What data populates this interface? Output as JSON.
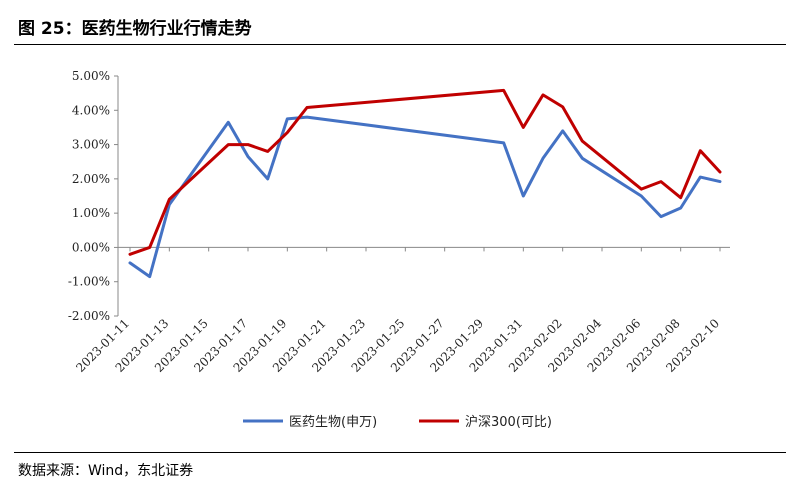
{
  "figure": {
    "title": "图 25：医药生物行业行情走势",
    "source": "数据来源：Wind，东北证券"
  },
  "chart_data": {
    "type": "line",
    "title": "",
    "xlabel": "",
    "ylabel": "",
    "ylim": [
      -2,
      5
    ],
    "yticks": [
      -2,
      -1,
      0,
      1,
      2,
      3,
      4,
      5
    ],
    "ytick_labels": [
      "-2.00%",
      "-1.00%",
      "0.00%",
      "1.00%",
      "2.00%",
      "3.00%",
      "4.00%",
      "5.00%"
    ],
    "x_range": [
      "2023-01-11",
      "2023-02-10"
    ],
    "xtick_labels": [
      "2023-01-11",
      "2023-01-13",
      "2023-01-15",
      "2023-01-17",
      "2023-01-19",
      "2023-01-21",
      "2023-01-23",
      "2023-01-25",
      "2023-01-27",
      "2023-01-29",
      "2023-01-31",
      "2023-02-02",
      "2023-02-04",
      "2023-02-06",
      "2023-02-08",
      "2023-02-10"
    ],
    "grid": false,
    "legend_position": "bottom",
    "series": [
      {
        "name": "医药生物(申万)",
        "color": "#4472C4",
        "points": [
          [
            "2023-01-11",
            -0.45
          ],
          [
            "2023-01-12",
            -0.85
          ],
          [
            "2023-01-13",
            1.25
          ],
          [
            "2023-01-16",
            3.65
          ],
          [
            "2023-01-17",
            2.65
          ],
          [
            "2023-01-18",
            2.0
          ],
          [
            "2023-01-19",
            3.75
          ],
          [
            "2023-01-20",
            3.8
          ],
          [
            "2023-01-30",
            3.05
          ],
          [
            "2023-01-31",
            1.5
          ],
          [
            "2023-02-01",
            2.6
          ],
          [
            "2023-02-02",
            3.4
          ],
          [
            "2023-02-03",
            2.6
          ],
          [
            "2023-02-06",
            1.5
          ],
          [
            "2023-02-07",
            0.9
          ],
          [
            "2023-02-08",
            1.15
          ],
          [
            "2023-02-09",
            2.05
          ],
          [
            "2023-02-10",
            1.92
          ]
        ]
      },
      {
        "name": "沪深300(可比)",
        "color": "#C00000",
        "points": [
          [
            "2023-01-11",
            -0.2
          ],
          [
            "2023-01-12",
            0.0
          ],
          [
            "2023-01-13",
            1.4
          ],
          [
            "2023-01-16",
            3.0
          ],
          [
            "2023-01-17",
            3.0
          ],
          [
            "2023-01-18",
            2.8
          ],
          [
            "2023-01-19",
            3.35
          ],
          [
            "2023-01-20",
            4.08
          ],
          [
            "2023-01-30",
            4.58
          ],
          [
            "2023-01-31",
            3.5
          ],
          [
            "2023-02-01",
            4.45
          ],
          [
            "2023-02-02",
            4.1
          ],
          [
            "2023-02-03",
            3.1
          ],
          [
            "2023-02-06",
            1.7
          ],
          [
            "2023-02-07",
            1.92
          ],
          [
            "2023-02-08",
            1.45
          ],
          [
            "2023-02-09",
            2.82
          ],
          [
            "2023-02-10",
            2.2
          ]
        ]
      }
    ]
  }
}
